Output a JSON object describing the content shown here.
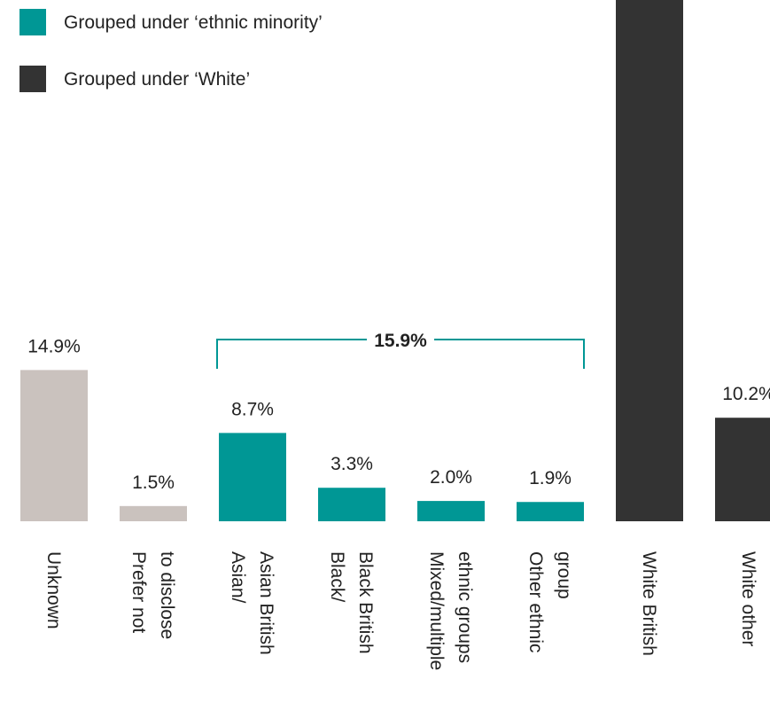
{
  "chart_data": {
    "type": "bar",
    "categories": [
      [
        "Unknown"
      ],
      [
        "Prefer not",
        "to disclose"
      ],
      [
        "Asian/",
        "Asian British"
      ],
      [
        "Black/",
        "Black British"
      ],
      [
        "Mixed/multiple",
        "ethnic groups"
      ],
      [
        "Other ethnic",
        "group"
      ],
      [
        "White British"
      ],
      [
        "White other"
      ]
    ],
    "values": [
      14.9,
      1.5,
      8.7,
      3.3,
      2.0,
      1.9,
      null,
      10.2
    ],
    "value_labels": [
      "14.9%",
      "1.5%",
      "8.7%",
      "3.3%",
      "2.0%",
      "1.9%",
      "",
      "10.2%"
    ],
    "groups": [
      "none",
      "none",
      "ethnic",
      "ethnic",
      "ethnic",
      "ethnic",
      "white",
      "white"
    ],
    "colors": {
      "none": "#cac2be",
      "ethnic": "#009795",
      "white": "#333333"
    },
    "legend": [
      {
        "label": "Grouped under ‘ethnic minority’",
        "group": "ethnic"
      },
      {
        "label": "Grouped under ‘White’",
        "group": "white"
      }
    ],
    "bracket": {
      "label": "15.9%",
      "from_index": 2,
      "to_index": 5,
      "color": "#009795"
    }
  }
}
